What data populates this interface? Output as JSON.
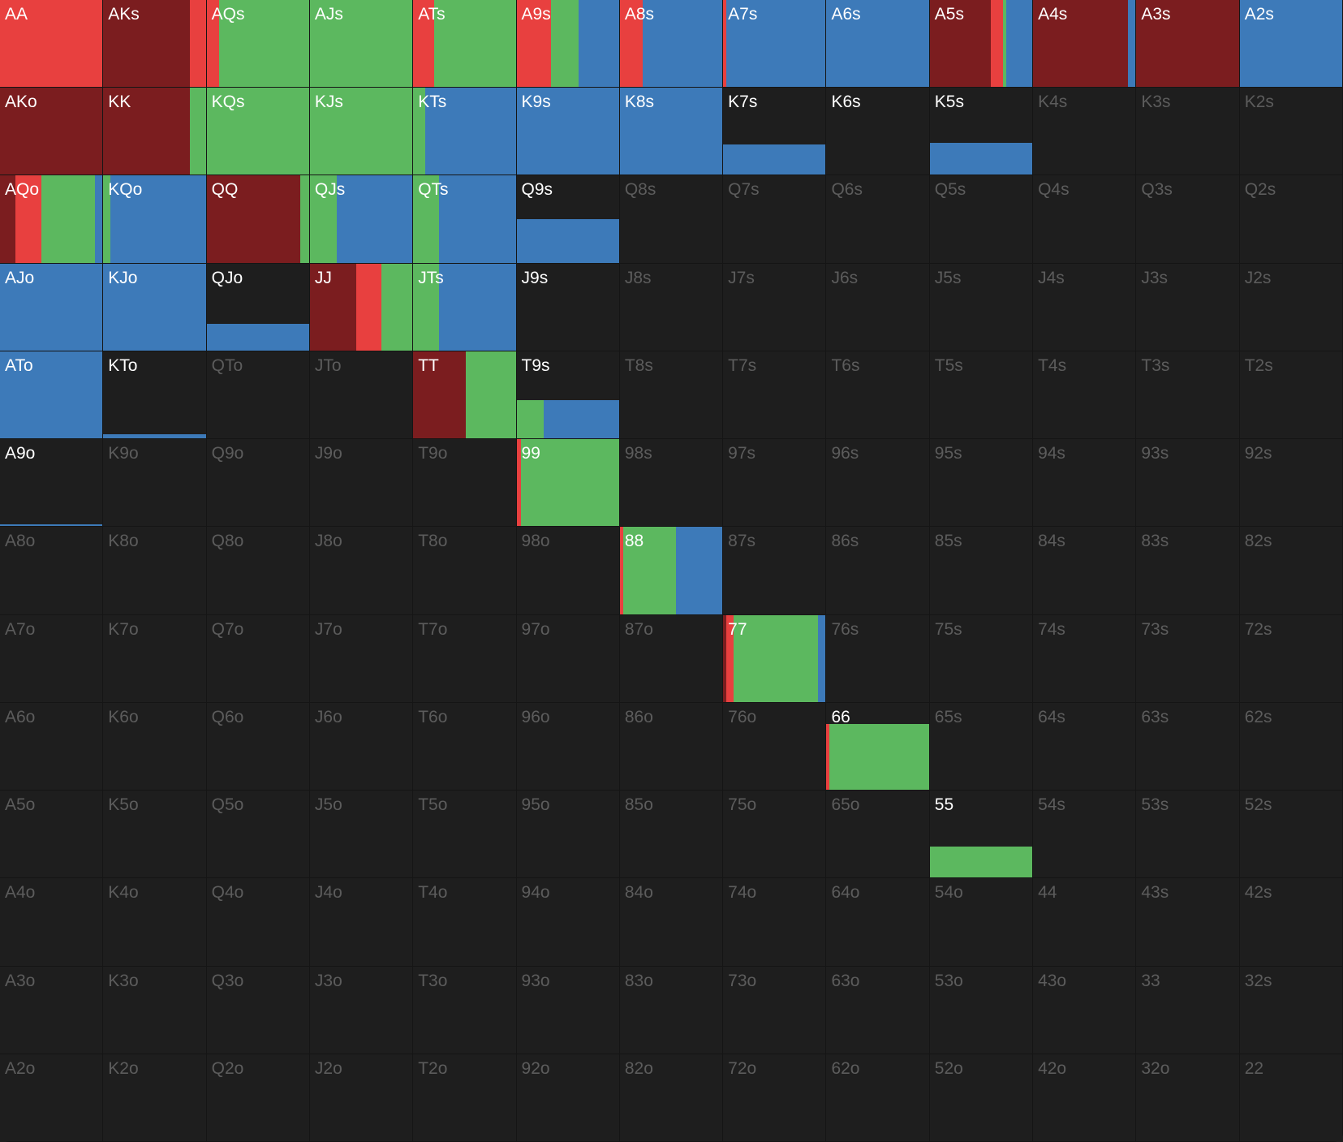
{
  "grid": {
    "colors": [
      "#7b1d1f",
      "#e8403f",
      "#5cb85f",
      "#3d7ab9"
    ],
    "rows": [
      [
        {
          "label": "AA",
          "weight": 100,
          "freqs": [
            0,
            100,
            0,
            0
          ]
        },
        {
          "label": "AKs",
          "weight": 100,
          "freqs": [
            84,
            16,
            0,
            0
          ]
        },
        {
          "label": "AQs",
          "weight": 100,
          "freqs": [
            0,
            12,
            88,
            0
          ]
        },
        {
          "label": "AJs",
          "weight": 100,
          "freqs": [
            0,
            0,
            100,
            0
          ]
        },
        {
          "label": "ATs",
          "weight": 100,
          "freqs": [
            0,
            20,
            80,
            0
          ]
        },
        {
          "label": "A9s",
          "weight": 100,
          "freqs": [
            0,
            33,
            27,
            40
          ]
        },
        {
          "label": "A8s",
          "weight": 100,
          "freqs": [
            0,
            22,
            0,
            78
          ]
        },
        {
          "label": "A7s",
          "weight": 100,
          "freqs": [
            0,
            3,
            0,
            97
          ]
        },
        {
          "label": "A6s",
          "weight": 100,
          "freqs": [
            0,
            0,
            0,
            100
          ]
        },
        {
          "label": "A5s",
          "weight": 100,
          "freqs": [
            59,
            12,
            3,
            26
          ]
        },
        {
          "label": "A4s",
          "weight": 100,
          "freqs": [
            92,
            0,
            0,
            8
          ]
        },
        {
          "label": "A3s",
          "weight": 100,
          "freqs": [
            100,
            0,
            0,
            0
          ]
        },
        {
          "label": "A2s",
          "weight": 100,
          "freqs": [
            0,
            0,
            0,
            100
          ]
        }
      ],
      [
        {
          "label": "AKo",
          "weight": 100,
          "freqs": [
            100,
            0,
            0,
            0
          ]
        },
        {
          "label": "KK",
          "weight": 100,
          "freqs": [
            84,
            0,
            16,
            0
          ]
        },
        {
          "label": "KQs",
          "weight": 100,
          "freqs": [
            0,
            0,
            100,
            0
          ]
        },
        {
          "label": "KJs",
          "weight": 100,
          "freqs": [
            0,
            0,
            100,
            0
          ]
        },
        {
          "label": "KTs",
          "weight": 100,
          "freqs": [
            0,
            0,
            12,
            88
          ]
        },
        {
          "label": "K9s",
          "weight": 100,
          "freqs": [
            0,
            0,
            0,
            100
          ]
        },
        {
          "label": "K8s",
          "weight": 100,
          "freqs": [
            0,
            0,
            0,
            100
          ]
        },
        {
          "label": "K7s",
          "weight": 35,
          "freqs": [
            0,
            0,
            0,
            100
          ]
        },
        {
          "label": "K6s",
          "active": true
        },
        {
          "label": "K5s",
          "weight": 36,
          "freqs": [
            0,
            0,
            0,
            100
          ]
        },
        {
          "label": "K4s"
        },
        {
          "label": "K3s"
        },
        {
          "label": "K2s"
        }
      ],
      [
        {
          "label": "AQo",
          "weight": 100,
          "freqs": [
            15,
            25,
            52,
            8
          ]
        },
        {
          "label": "KQo",
          "weight": 100,
          "freqs": [
            0,
            0,
            7,
            93
          ]
        },
        {
          "label": "QQ",
          "weight": 100,
          "freqs": [
            91,
            0,
            9,
            0
          ]
        },
        {
          "label": "QJs",
          "weight": 100,
          "freqs": [
            0,
            0,
            26,
            74
          ]
        },
        {
          "label": "QTs",
          "weight": 100,
          "freqs": [
            0,
            0,
            25,
            75
          ]
        },
        {
          "label": "Q9s",
          "weight": 50,
          "freqs": [
            0,
            0,
            0,
            100
          ]
        },
        {
          "label": "Q8s"
        },
        {
          "label": "Q7s"
        },
        {
          "label": "Q6s"
        },
        {
          "label": "Q5s"
        },
        {
          "label": "Q4s"
        },
        {
          "label": "Q3s"
        },
        {
          "label": "Q2s"
        }
      ],
      [
        {
          "label": "AJo",
          "weight": 100,
          "freqs": [
            0,
            0,
            0,
            100
          ]
        },
        {
          "label": "KJo",
          "weight": 100,
          "freqs": [
            0,
            0,
            0,
            100
          ]
        },
        {
          "label": "QJo",
          "weight": 30,
          "freqs": [
            0,
            0,
            0,
            100
          ]
        },
        {
          "label": "JJ",
          "weight": 100,
          "freqs": [
            45,
            24,
            31,
            0
          ]
        },
        {
          "label": "JTs",
          "weight": 100,
          "freqs": [
            0,
            0,
            25,
            75
          ]
        },
        {
          "label": "J9s",
          "active": true
        },
        {
          "label": "J8s"
        },
        {
          "label": "J7s"
        },
        {
          "label": "J6s"
        },
        {
          "label": "J5s"
        },
        {
          "label": "J4s"
        },
        {
          "label": "J3s"
        },
        {
          "label": "J2s"
        }
      ],
      [
        {
          "label": "ATo",
          "weight": 100,
          "freqs": [
            0,
            0,
            0,
            100
          ]
        },
        {
          "label": "KTo",
          "weight": 5,
          "freqs": [
            0,
            0,
            0,
            100
          ]
        },
        {
          "label": "QTo"
        },
        {
          "label": "JTo"
        },
        {
          "label": "TT",
          "weight": 100,
          "freqs": [
            51,
            0,
            49,
            0
          ]
        },
        {
          "label": "T9s",
          "weight": 44,
          "freqs": [
            0,
            0,
            26,
            74
          ]
        },
        {
          "label": "T8s"
        },
        {
          "label": "T7s"
        },
        {
          "label": "T6s"
        },
        {
          "label": "T5s"
        },
        {
          "label": "T4s"
        },
        {
          "label": "T3s"
        },
        {
          "label": "T2s"
        }
      ],
      [
        {
          "label": "A9o",
          "weight": 2,
          "freqs": [
            0,
            0,
            0,
            100
          ]
        },
        {
          "label": "K9o"
        },
        {
          "label": "Q9o"
        },
        {
          "label": "J9o"
        },
        {
          "label": "T9o"
        },
        {
          "label": "99",
          "weight": 100,
          "freqs": [
            0,
            4,
            96,
            0
          ]
        },
        {
          "label": "98s"
        },
        {
          "label": "97s"
        },
        {
          "label": "96s"
        },
        {
          "label": "95s"
        },
        {
          "label": "94s"
        },
        {
          "label": "93s"
        },
        {
          "label": "92s"
        }
      ],
      [
        {
          "label": "A8o"
        },
        {
          "label": "K8o"
        },
        {
          "label": "Q8o"
        },
        {
          "label": "J8o"
        },
        {
          "label": "T8o"
        },
        {
          "label": "98o"
        },
        {
          "label": "88",
          "weight": 100,
          "freqs": [
            0,
            3,
            51,
            46
          ]
        },
        {
          "label": "87s"
        },
        {
          "label": "86s"
        },
        {
          "label": "85s"
        },
        {
          "label": "84s"
        },
        {
          "label": "83s"
        },
        {
          "label": "82s"
        }
      ],
      [
        {
          "label": "A7o"
        },
        {
          "label": "K7o"
        },
        {
          "label": "Q7o"
        },
        {
          "label": "J7o"
        },
        {
          "label": "T7o"
        },
        {
          "label": "97o"
        },
        {
          "label": "87o"
        },
        {
          "label": "77",
          "weight": 100,
          "freqs": [
            3,
            7,
            82,
            8
          ]
        },
        {
          "label": "76s"
        },
        {
          "label": "75s"
        },
        {
          "label": "74s"
        },
        {
          "label": "73s"
        },
        {
          "label": "72s"
        }
      ],
      [
        {
          "label": "A6o"
        },
        {
          "label": "K6o"
        },
        {
          "label": "Q6o"
        },
        {
          "label": "J6o"
        },
        {
          "label": "T6o"
        },
        {
          "label": "96o"
        },
        {
          "label": "86o"
        },
        {
          "label": "76o"
        },
        {
          "label": "66",
          "weight": 75,
          "freqs": [
            0,
            3,
            97,
            0
          ]
        },
        {
          "label": "65s"
        },
        {
          "label": "64s"
        },
        {
          "label": "63s"
        },
        {
          "label": "62s"
        }
      ],
      [
        {
          "label": "A5o"
        },
        {
          "label": "K5o"
        },
        {
          "label": "Q5o"
        },
        {
          "label": "J5o"
        },
        {
          "label": "T5o"
        },
        {
          "label": "95o"
        },
        {
          "label": "85o"
        },
        {
          "label": "75o"
        },
        {
          "label": "65o"
        },
        {
          "label": "55",
          "weight": 35,
          "freqs": [
            0,
            0,
            100,
            0
          ]
        },
        {
          "label": "54s"
        },
        {
          "label": "53s"
        },
        {
          "label": "52s"
        }
      ],
      [
        {
          "label": "A4o"
        },
        {
          "label": "K4o"
        },
        {
          "label": "Q4o"
        },
        {
          "label": "J4o"
        },
        {
          "label": "T4o"
        },
        {
          "label": "94o"
        },
        {
          "label": "84o"
        },
        {
          "label": "74o"
        },
        {
          "label": "64o"
        },
        {
          "label": "54o"
        },
        {
          "label": "44"
        },
        {
          "label": "43s"
        },
        {
          "label": "42s"
        }
      ],
      [
        {
          "label": "A3o"
        },
        {
          "label": "K3o"
        },
        {
          "label": "Q3o"
        },
        {
          "label": "J3o"
        },
        {
          "label": "T3o"
        },
        {
          "label": "93o"
        },
        {
          "label": "83o"
        },
        {
          "label": "73o"
        },
        {
          "label": "63o"
        },
        {
          "label": "53o"
        },
        {
          "label": "43o"
        },
        {
          "label": "33"
        },
        {
          "label": "32s"
        }
      ],
      [
        {
          "label": "A2o"
        },
        {
          "label": "K2o"
        },
        {
          "label": "Q2o"
        },
        {
          "label": "J2o"
        },
        {
          "label": "T2o"
        },
        {
          "label": "92o"
        },
        {
          "label": "82o"
        },
        {
          "label": "72o"
        },
        {
          "label": "62o"
        },
        {
          "label": "52o"
        },
        {
          "label": "42o"
        },
        {
          "label": "32o"
        },
        {
          "label": "22"
        }
      ]
    ]
  }
}
